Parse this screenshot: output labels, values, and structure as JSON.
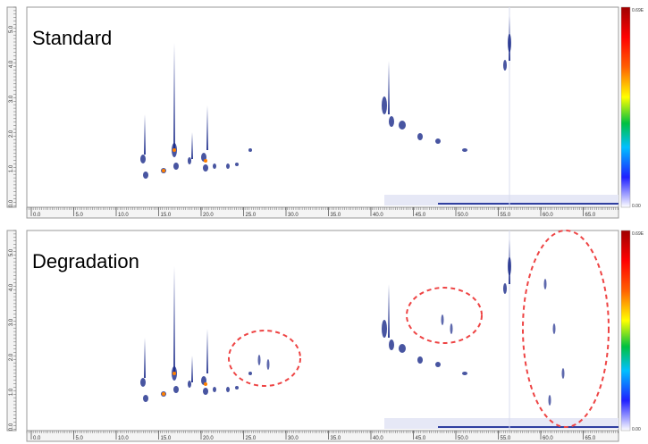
{
  "panels": [
    {
      "title": "Standard",
      "x_tick_labels": [
        "0.0",
        "5.0",
        "10.0",
        "15.0",
        "20.0",
        "25.0",
        "30.0",
        "35.0",
        "40.0",
        "45.0",
        "50.0",
        "55.0",
        "60.0",
        "65.0"
      ],
      "y_tick_labels": [
        "0.0",
        "1.0",
        "2.0",
        "3.0",
        "4.0",
        "5.0"
      ],
      "colorbar_max": "0.69E",
      "colorbar_min": "0.00"
    },
    {
      "title": "Degradation",
      "x_tick_labels": [
        "0.0",
        "5.0",
        "10.0",
        "15.0",
        "20.0",
        "25.0",
        "30.0",
        "35.0",
        "40.0",
        "45.0",
        "50.0",
        "55.0",
        "60.0",
        "65.0"
      ],
      "y_tick_labels": [
        "0.0",
        "1.0",
        "2.0",
        "3.0",
        "4.0",
        "5.0"
      ],
      "colorbar_max": "0.69E",
      "colorbar_min": "0.00"
    }
  ]
}
